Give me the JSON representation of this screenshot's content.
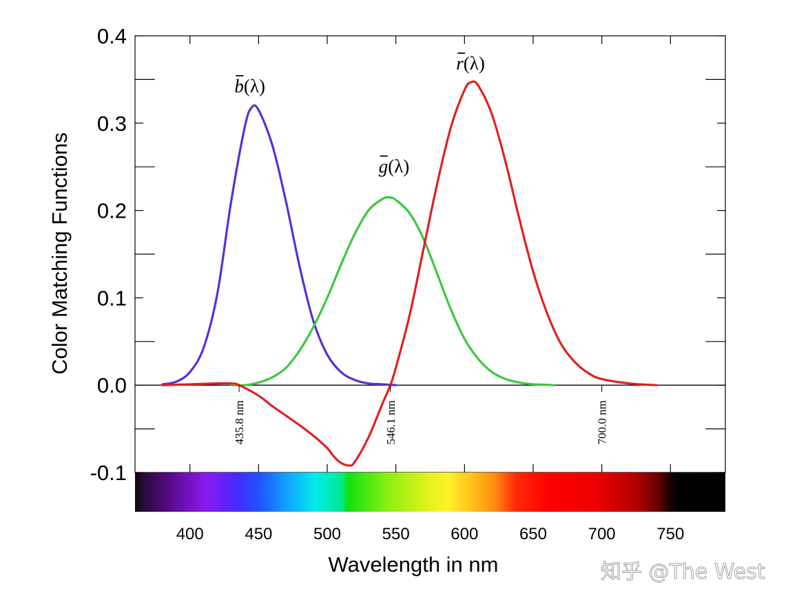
{
  "chart_data": {
    "type": "line",
    "xlabel": "Wavelength in nm",
    "ylabel": "Color Matching Functions",
    "xlim": [
      360,
      790
    ],
    "ylim": [
      -0.1,
      0.4
    ],
    "x_ticks": [
      400,
      450,
      500,
      550,
      600,
      650,
      700,
      750
    ],
    "x_tick_labels": [
      "400",
      "450",
      "500",
      "550",
      "600",
      "650",
      "700",
      "750"
    ],
    "y_ticks": [
      -0.1,
      0.0,
      0.1,
      0.2,
      0.3,
      0.4
    ],
    "y_tick_labels": [
      "-0.1",
      "0.0",
      "0.1",
      "0.2",
      "0.3",
      "0.4"
    ],
    "grid": false,
    "series": [
      {
        "name": "b̄(λ)",
        "label_base": "b",
        "label_suffix": "(λ)",
        "color": "#5a2fd6",
        "x": [
          380,
          390,
          400,
          410,
          420,
          430,
          440,
          445,
          450,
          460,
          470,
          480,
          490,
          500,
          510,
          520,
          530,
          540,
          550
        ],
        "y": [
          0.001,
          0.004,
          0.015,
          0.043,
          0.105,
          0.21,
          0.296,
          0.318,
          0.315,
          0.275,
          0.21,
          0.135,
          0.073,
          0.035,
          0.015,
          0.006,
          0.002,
          0.001,
          0.0
        ]
      },
      {
        "name": "ḡ(λ)",
        "label_base": "g",
        "label_suffix": "(λ)",
        "color": "#3cc83c",
        "x": [
          430,
          440,
          450,
          460,
          470,
          480,
          490,
          500,
          510,
          520,
          530,
          540,
          545,
          550,
          560,
          570,
          580,
          590,
          600,
          610,
          620,
          630,
          640,
          650,
          660,
          665
        ],
        "y": [
          0.0,
          0.0,
          0.003,
          0.009,
          0.02,
          0.04,
          0.067,
          0.1,
          0.138,
          0.173,
          0.2,
          0.213,
          0.215,
          0.212,
          0.197,
          0.168,
          0.128,
          0.087,
          0.053,
          0.03,
          0.015,
          0.007,
          0.003,
          0.001,
          0.0005,
          0.0
        ]
      },
      {
        "name": "r̄(λ)",
        "label_base": "r",
        "label_suffix": "(λ)",
        "color": "#e02020",
        "x": [
          380,
          400,
          420,
          430,
          436,
          450,
          460,
          470,
          480,
          490,
          500,
          505,
          510,
          516,
          520,
          530,
          540,
          546,
          550,
          560,
          570,
          580,
          590,
          600,
          605,
          610,
          620,
          630,
          640,
          650,
          660,
          670,
          680,
          690,
          700,
          720,
          740
        ],
        "y": [
          0.0,
          0.001,
          0.002,
          0.002,
          0.0,
          -0.012,
          -0.024,
          -0.035,
          -0.046,
          -0.058,
          -0.072,
          -0.082,
          -0.089,
          -0.092,
          -0.088,
          -0.06,
          -0.022,
          0.0,
          0.02,
          0.08,
          0.155,
          0.23,
          0.295,
          0.338,
          0.347,
          0.343,
          0.31,
          0.255,
          0.19,
          0.13,
          0.083,
          0.048,
          0.027,
          0.014,
          0.007,
          0.002,
          0.0
        ]
      }
    ],
    "annotations": [
      {
        "x": 435.8,
        "text": "435.8 nm"
      },
      {
        "x": 546.1,
        "text": "546.1 nm"
      },
      {
        "x": 700.0,
        "text": "700.0 nm"
      }
    ]
  },
  "watermark": "知乎 @The West"
}
